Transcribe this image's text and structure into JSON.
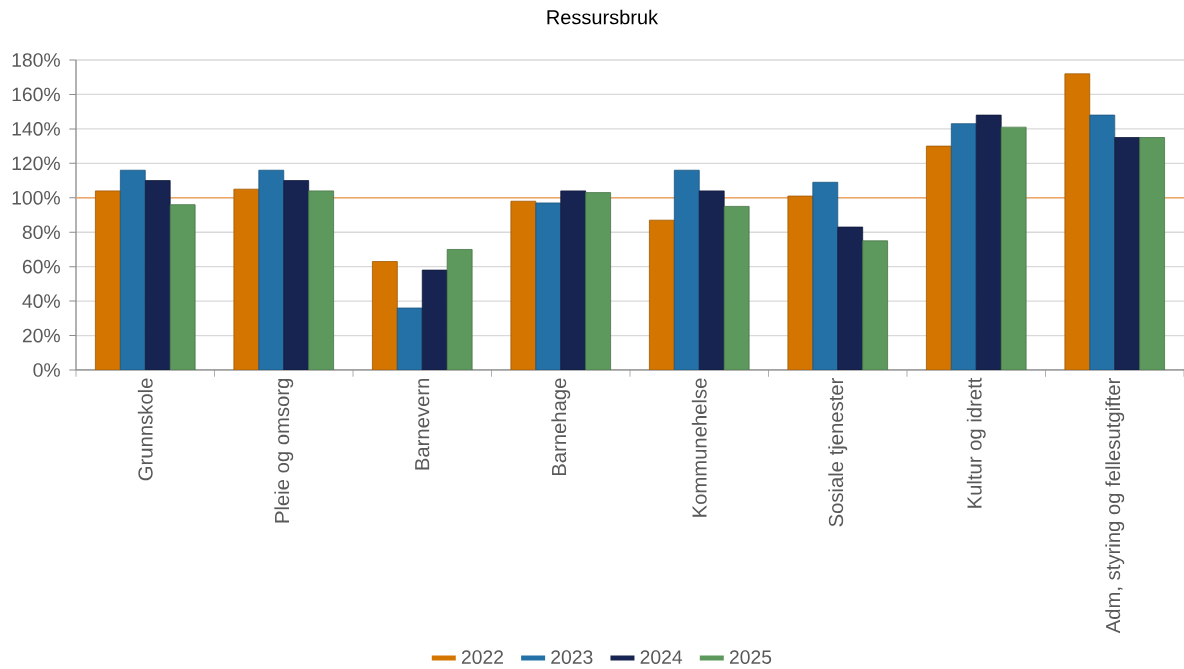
{
  "chart_data": {
    "type": "bar",
    "title": "Ressursbruk",
    "categories": [
      "Grunnskole",
      "Pleie og omsorg",
      "Barnevern",
      "Barnehage",
      "Kommunehelse",
      "Sosiale tjenester",
      "Kultur og idrett",
      "Adm, styring og fellesutgifter"
    ],
    "series": [
      {
        "name": "2022",
        "color": "#d47500",
        "values": [
          104,
          105,
          63,
          98,
          87,
          101,
          130,
          172
        ]
      },
      {
        "name": "2023",
        "color": "#2471a8",
        "values": [
          116,
          116,
          36,
          97,
          116,
          109,
          143,
          148
        ]
      },
      {
        "name": "2024",
        "color": "#172350",
        "values": [
          110,
          110,
          58,
          104,
          104,
          83,
          148,
          135
        ]
      },
      {
        "name": "2025",
        "color": "#5d995d",
        "values": [
          96,
          104,
          70,
          103,
          95,
          75,
          141,
          135
        ]
      }
    ],
    "ylim": [
      0,
      180
    ],
    "yticks": [
      {
        "value": 0,
        "label": "0%"
      },
      {
        "value": 20,
        "label": "20%"
      },
      {
        "value": 40,
        "label": "40%"
      },
      {
        "value": 60,
        "label": "60%"
      },
      {
        "value": 80,
        "label": "80%"
      },
      {
        "value": 100,
        "label": "100%"
      },
      {
        "value": 120,
        "label": "120%"
      },
      {
        "value": 140,
        "label": "140%"
      },
      {
        "value": 160,
        "label": "160%"
      },
      {
        "value": 180,
        "label": "180%"
      }
    ],
    "grid": "y",
    "legend": "bottom",
    "ref_lines": [
      {
        "axis": "y",
        "value": 100,
        "color": "#f0a868"
      }
    ]
  }
}
